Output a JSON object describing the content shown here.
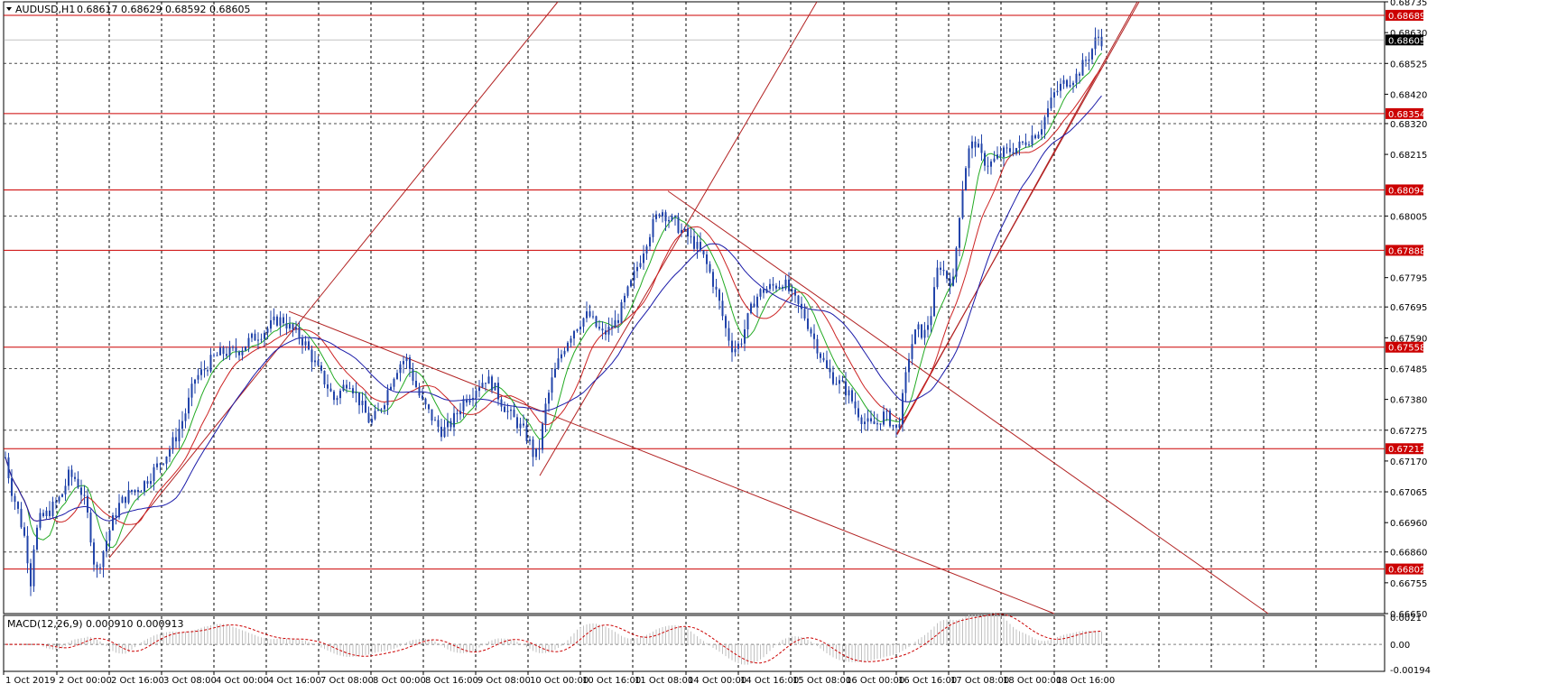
{
  "header": {
    "symbol": "AUDUSD,H1",
    "ohlc": "0.68617 0.68629 0.68592 0.68605"
  },
  "macd_header": {
    "label": "MACD(12,26,9) 0.000910 0.000913"
  },
  "colors": {
    "candle": "#2244aa",
    "level_line": "#cc0000",
    "trend_line": "#b22222",
    "ma_fast": "#22aa22",
    "ma_mid": "#cc2222",
    "ma_slow": "#1a1aa8",
    "grid": "#000000",
    "current_price_bg": "#000000"
  },
  "chart_data": {
    "type": "candlestick",
    "symbol": "AUDUSD",
    "timeframe": "H1",
    "ylim": [
      0.6665,
      0.68735
    ],
    "y_ticks": [
      "0.68735",
      "0.68630",
      "0.68525",
      "0.68420",
      "0.68320",
      "0.68215",
      "0.68005",
      "0.67795",
      "0.67695",
      "0.67590",
      "0.67485",
      "0.67380",
      "0.67275",
      "0.67170",
      "0.67065",
      "0.66960",
      "0.66860",
      "0.66755",
      "0.66650"
    ],
    "horizontal_levels": [
      "0.68689",
      "0.68354",
      "0.68094",
      "0.67888",
      "0.67558",
      "0.67212",
      "0.66802"
    ],
    "current_price": "0.68605",
    "x_labels": [
      "1 Oct 2019",
      "2 Oct 00:00",
      "2 Oct 16:00",
      "3 Oct 08:00",
      "4 Oct 00:00",
      "4 Oct 16:00",
      "7 Oct 08:00",
      "8 Oct 00:00",
      "8 Oct 16:00",
      "9 Oct 08:00",
      "10 Oct 00:00",
      "10 Oct 16:00",
      "11 Oct 08:00",
      "14 Oct 00:00",
      "14 Oct 16:00",
      "15 Oct 08:00",
      "16 Oct 00:00",
      "16 Oct 16:00",
      "17 Oct 08:00",
      "18 Oct 00:00",
      "18 Oct 16:00"
    ],
    "price_path": [
      [
        0,
        0.6735
      ],
      [
        5,
        0.672
      ],
      [
        12,
        0.6708
      ],
      [
        20,
        0.67
      ],
      [
        28,
        0.669
      ],
      [
        34,
        0.6676
      ],
      [
        38,
        0.669
      ],
      [
        44,
        0.6697
      ],
      [
        52,
        0.6699
      ],
      [
        60,
        0.6702
      ],
      [
        68,
        0.6705
      ],
      [
        76,
        0.6712
      ],
      [
        84,
        0.6711
      ],
      [
        92,
        0.6705
      ],
      [
        98,
        0.6697
      ],
      [
        102,
        0.6688
      ],
      [
        106,
        0.6678
      ],
      [
        110,
        0.6682
      ],
      [
        116,
        0.6688
      ],
      [
        124,
        0.6696
      ],
      [
        132,
        0.6702
      ],
      [
        140,
        0.6705
      ],
      [
        148,
        0.6707
      ],
      [
        156,
        0.6708
      ],
      [
        166,
        0.6712
      ],
      [
        176,
        0.6716
      ],
      [
        186,
        0.672
      ],
      [
        196,
        0.6726
      ],
      [
        206,
        0.6734
      ],
      [
        216,
        0.6745
      ],
      [
        226,
        0.6748
      ],
      [
        236,
        0.6752
      ],
      [
        246,
        0.6754
      ],
      [
        256,
        0.6754
      ],
      [
        266,
        0.6755
      ],
      [
        276,
        0.6758
      ],
      [
        286,
        0.676
      ],
      [
        296,
        0.6762
      ],
      [
        306,
        0.6765
      ],
      [
        314,
        0.6765
      ],
      [
        322,
        0.6762
      ],
      [
        330,
        0.676
      ],
      [
        338,
        0.6757
      ],
      [
        346,
        0.6752
      ],
      [
        354,
        0.6747
      ],
      [
        362,
        0.6743
      ],
      [
        370,
        0.6738
      ],
      [
        378,
        0.6741
      ],
      [
        386,
        0.6745
      ],
      [
        394,
        0.674
      ],
      [
        402,
        0.6735
      ],
      [
        410,
        0.673
      ],
      [
        418,
        0.6733
      ],
      [
        426,
        0.6738
      ],
      [
        434,
        0.6745
      ],
      [
        442,
        0.675
      ],
      [
        450,
        0.6752
      ],
      [
        458,
        0.6745
      ],
      [
        466,
        0.6738
      ],
      [
        474,
        0.6734
      ],
      [
        482,
        0.673
      ],
      [
        490,
        0.6727
      ],
      [
        498,
        0.6729
      ],
      [
        506,
        0.6733
      ],
      [
        514,
        0.6738
      ],
      [
        522,
        0.674
      ],
      [
        530,
        0.6743
      ],
      [
        538,
        0.6745
      ],
      [
        546,
        0.6743
      ],
      [
        554,
        0.6738
      ],
      [
        562,
        0.6734
      ],
      [
        570,
        0.6731
      ],
      [
        578,
        0.6728
      ],
      [
        586,
        0.6724
      ],
      [
        592,
        0.6718
      ],
      [
        598,
        0.6722
      ],
      [
        604,
        0.6735
      ],
      [
        612,
        0.6745
      ],
      [
        620,
        0.6752
      ],
      [
        628,
        0.6758
      ],
      [
        636,
        0.6762
      ],
      [
        644,
        0.6765
      ],
      [
        652,
        0.6767
      ],
      [
        660,
        0.6763
      ],
      [
        668,
        0.676
      ],
      [
        676,
        0.6762
      ],
      [
        684,
        0.6765
      ],
      [
        692,
        0.6772
      ],
      [
        700,
        0.6778
      ],
      [
        708,
        0.6785
      ],
      [
        716,
        0.6792
      ],
      [
        724,
        0.6798
      ],
      [
        732,
        0.6803
      ],
      [
        740,
        0.68
      ],
      [
        748,
        0.6798
      ],
      [
        756,
        0.6795
      ],
      [
        764,
        0.6793
      ],
      [
        772,
        0.679
      ],
      [
        780,
        0.6786
      ],
      [
        788,
        0.678
      ],
      [
        796,
        0.6772
      ],
      [
        804,
        0.6762
      ],
      [
        812,
        0.6755
      ],
      [
        820,
        0.6757
      ],
      [
        828,
        0.6765
      ],
      [
        836,
        0.6772
      ],
      [
        844,
        0.6775
      ],
      [
        852,
        0.6776
      ],
      [
        860,
        0.6777
      ],
      [
        868,
        0.6778
      ],
      [
        876,
        0.6774
      ],
      [
        884,
        0.677
      ],
      [
        892,
        0.6766
      ],
      [
        900,
        0.676
      ],
      [
        908,
        0.6754
      ],
      [
        916,
        0.6748
      ],
      [
        924,
        0.6745
      ],
      [
        932,
        0.6743
      ],
      [
        940,
        0.674
      ],
      [
        948,
        0.6735
      ],
      [
        956,
        0.6731
      ],
      [
        964,
        0.6729
      ],
      [
        972,
        0.673
      ],
      [
        980,
        0.6733
      ],
      [
        988,
        0.673
      ],
      [
        994,
        0.6727
      ],
      [
        1000,
        0.6738
      ],
      [
        1008,
        0.6755
      ],
      [
        1016,
        0.6762
      ],
      [
        1024,
        0.676
      ],
      [
        1032,
        0.6768
      ],
      [
        1040,
        0.6785
      ],
      [
        1048,
        0.678
      ],
      [
        1056,
        0.6778
      ],
      [
        1064,
        0.6805
      ],
      [
        1072,
        0.6822
      ],
      [
        1080,
        0.6826
      ],
      [
        1088,
        0.682
      ],
      [
        1096,
        0.6818
      ],
      [
        1104,
        0.682
      ],
      [
        1112,
        0.6822
      ],
      [
        1120,
        0.6823
      ],
      [
        1128,
        0.6824
      ],
      [
        1136,
        0.6826
      ],
      [
        1144,
        0.6828
      ],
      [
        1152,
        0.683
      ],
      [
        1160,
        0.6836
      ],
      [
        1168,
        0.6842
      ],
      [
        1176,
        0.6845
      ],
      [
        1184,
        0.6847
      ],
      [
        1192,
        0.6848
      ],
      [
        1200,
        0.6852
      ],
      [
        1208,
        0.6856
      ],
      [
        1216,
        0.6862
      ],
      [
        1222,
        0.686
      ]
    ],
    "macd": {
      "name": "MACD(12,26,9)",
      "value": "0.000910",
      "signal": "0.000913",
      "ylim": [
        -0.00194,
        0.0021
      ],
      "y_ticks": [
        "0.0021",
        "0.00",
        "-0.00194"
      ]
    }
  }
}
